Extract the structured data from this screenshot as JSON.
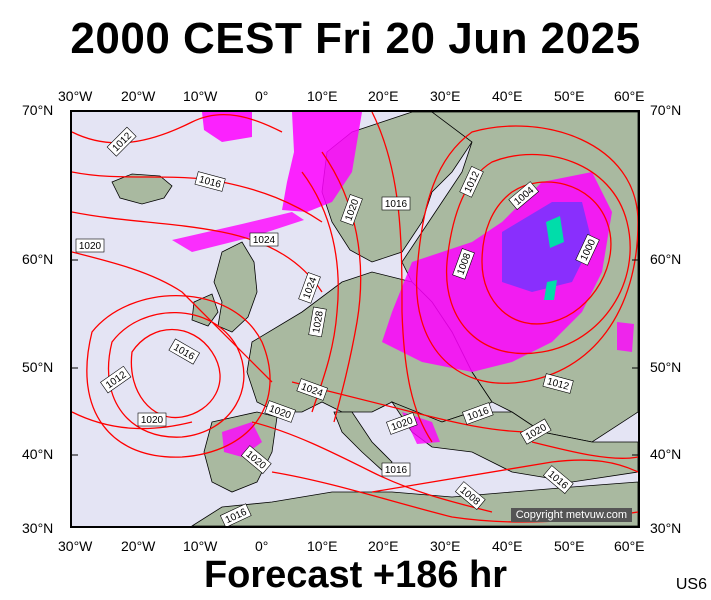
{
  "title": "2000 CEST Fri 20 Jun 2025",
  "subtitle": "Forecast +186 hr",
  "model_tag": "US6",
  "copyright": "Copyright metvuw.com",
  "axes": {
    "lon_labels": [
      "30°W",
      "20°W",
      "10°W",
      "0°",
      "10°E",
      "20°E",
      "30°E",
      "40°E",
      "50°E",
      "60°E"
    ],
    "lat_labels_left": [
      "70°N",
      "60°N",
      "50°N",
      "40°N",
      "30°N"
    ],
    "lat_labels_right": [
      "70°N",
      "60°N",
      "50°N",
      "40°N",
      "30°N"
    ]
  },
  "isobar_labels": [
    {
      "text": "1012"
    },
    {
      "text": "1016"
    },
    {
      "text": "1020"
    },
    {
      "text": "1024"
    },
    {
      "text": "1020"
    },
    {
      "text": "1016"
    },
    {
      "text": "1012"
    },
    {
      "text": "1004"
    },
    {
      "text": "1000"
    },
    {
      "text": "1008"
    },
    {
      "text": "1024"
    },
    {
      "text": "1028"
    },
    {
      "text": "1016"
    },
    {
      "text": "1012"
    },
    {
      "text": "1020"
    },
    {
      "text": "1024"
    },
    {
      "text": "1020"
    },
    {
      "text": "1020"
    },
    {
      "text": "1020"
    },
    {
      "text": "1016"
    },
    {
      "text": "1016"
    },
    {
      "text": "1012"
    },
    {
      "text": "1020"
    },
    {
      "text": "1016"
    },
    {
      "text": "1008"
    },
    {
      "text": "1016"
    }
  ],
  "colors": {
    "sea": "#e4e4f4",
    "land": "#a9b9a0",
    "isobar": "#ff0000",
    "precip_light": "#ff00ff",
    "precip_mid": "#7733ff",
    "precip_heavy": "#00ddaa"
  }
}
